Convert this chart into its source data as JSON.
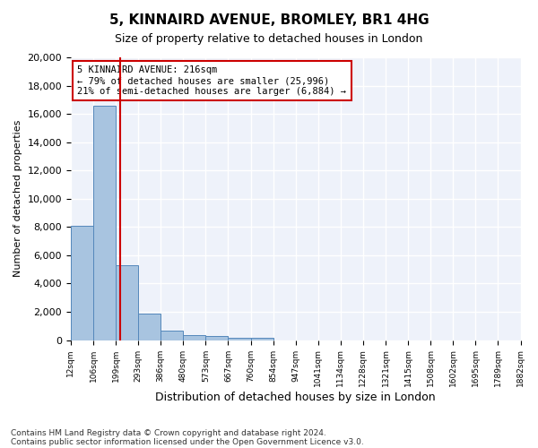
{
  "title": "5, KINNAIRD AVENUE, BROMLEY, BR1 4HG",
  "subtitle": "Size of property relative to detached houses in London",
  "xlabel": "Distribution of detached houses by size in London",
  "ylabel": "Number of detached properties",
  "bar_color": "#a8c4e0",
  "bar_edge_color": "#5588bb",
  "background_color": "#eef2fa",
  "grid_color": "#ffffff",
  "bin_labels": [
    "12sqm",
    "106sqm",
    "199sqm",
    "293sqm",
    "386sqm",
    "480sqm",
    "573sqm",
    "667sqm",
    "760sqm",
    "854sqm",
    "947sqm",
    "1041sqm",
    "1134sqm",
    "1228sqm",
    "1321sqm",
    "1415sqm",
    "1508sqm",
    "1602sqm",
    "1695sqm",
    "1789sqm",
    "1882sqm"
  ],
  "bar_heights": [
    8100,
    16600,
    5300,
    1850,
    700,
    360,
    270,
    190,
    170,
    0,
    0,
    0,
    0,
    0,
    0,
    0,
    0,
    0,
    0,
    0
  ],
  "ylim": [
    0,
    20000
  ],
  "yticks": [
    0,
    2000,
    4000,
    6000,
    8000,
    10000,
    12000,
    14000,
    16000,
    18000,
    20000
  ],
  "property_label": "5 KINNAIRD AVENUE: 216sqm",
  "annotation_line1": "← 79% of detached houses are smaller (25,996)",
  "annotation_line2": "21% of semi-detached houses are larger (6,884) →",
  "annotation_box_color": "#cc0000",
  "footnote1": "Contains HM Land Registry data © Crown copyright and database right 2024.",
  "footnote2": "Contains public sector information licensed under the Open Government Licence v3.0."
}
